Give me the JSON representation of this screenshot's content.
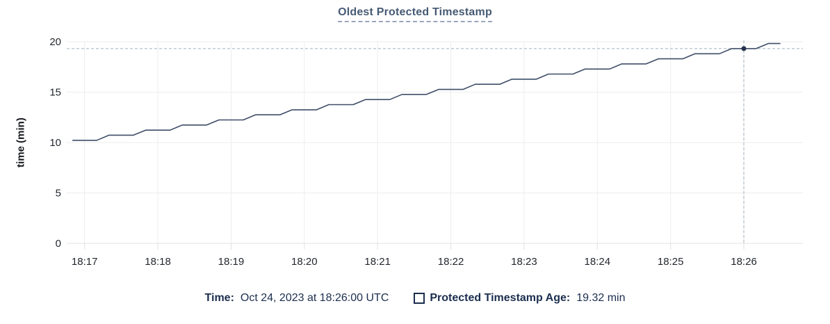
{
  "header": {
    "title": "Oldest Protected Timestamp"
  },
  "tooltip_bar": {
    "time_label": "Time:",
    "time_value": "Oct 24, 2023 at 18:26:00 UTC",
    "series_swatch": "hollow-square-swatch",
    "series_label": "Protected Timestamp Age:",
    "series_value": "19.32 min"
  },
  "colors": {
    "title": "#475a74",
    "title_underline": "#9aa6ba",
    "series_line": "#3f4d68",
    "hover_dot": "#26324e",
    "crosshair": "#9fb0bf",
    "gridline": "#ededed",
    "axis_line": "#e0e0e0",
    "tick_text": "#23272e",
    "legend_text": "#1b2e4e"
  },
  "chart_data": {
    "type": "line",
    "title": "Oldest Protected Timestamp",
    "xlabel": "",
    "ylabel": "time (min)",
    "ylim": [
      0,
      20
    ],
    "yticks": [
      0,
      5,
      10,
      15,
      20
    ],
    "xticks": [
      "18:17",
      "18:18",
      "18:19",
      "18:20",
      "18:21",
      "18:22",
      "18:23",
      "18:24",
      "18:25",
      "18:26"
    ],
    "grid": true,
    "legend_position": "bottom",
    "x_start": "18:16:50",
    "x_end": "18:26:30",
    "sample_interval_sec": 10,
    "hover": {
      "time": "18:26:00",
      "value": 19.32
    },
    "series": [
      {
        "name": "Protected Timestamp Age",
        "unit": "min",
        "color": "#3f4d68",
        "points": [
          [
            "18:16:50",
            10.22
          ],
          [
            "18:17:00",
            10.22
          ],
          [
            "18:17:10",
            10.22
          ],
          [
            "18:17:20",
            10.73
          ],
          [
            "18:17:30",
            10.73
          ],
          [
            "18:17:40",
            10.73
          ],
          [
            "18:17:50",
            11.23
          ],
          [
            "18:18:00",
            11.23
          ],
          [
            "18:18:10",
            11.23
          ],
          [
            "18:18:20",
            11.74
          ],
          [
            "18:18:30",
            11.74
          ],
          [
            "18:18:40",
            11.74
          ],
          [
            "18:18:50",
            12.24
          ],
          [
            "18:19:00",
            12.24
          ],
          [
            "18:19:10",
            12.24
          ],
          [
            "18:19:20",
            12.75
          ],
          [
            "18:19:30",
            12.75
          ],
          [
            "18:19:40",
            12.75
          ],
          [
            "18:19:50",
            13.25
          ],
          [
            "18:20:00",
            13.25
          ],
          [
            "18:20:10",
            13.25
          ],
          [
            "18:20:20",
            13.76
          ],
          [
            "18:20:30",
            13.76
          ],
          [
            "18:20:40",
            13.76
          ],
          [
            "18:20:50",
            14.26
          ],
          [
            "18:21:00",
            14.26
          ],
          [
            "18:21:10",
            14.26
          ],
          [
            "18:21:20",
            14.77
          ],
          [
            "18:21:30",
            14.77
          ],
          [
            "18:21:40",
            14.77
          ],
          [
            "18:21:50",
            15.27
          ],
          [
            "18:22:00",
            15.27
          ],
          [
            "18:22:10",
            15.27
          ],
          [
            "18:22:20",
            15.78
          ],
          [
            "18:22:30",
            15.78
          ],
          [
            "18:22:40",
            15.78
          ],
          [
            "18:22:50",
            16.28
          ],
          [
            "18:23:00",
            16.28
          ],
          [
            "18:23:10",
            16.28
          ],
          [
            "18:23:20",
            16.79
          ],
          [
            "18:23:30",
            16.79
          ],
          [
            "18:23:40",
            16.79
          ],
          [
            "18:23:50",
            17.29
          ],
          [
            "18:24:00",
            17.29
          ],
          [
            "18:24:10",
            17.29
          ],
          [
            "18:24:20",
            17.8
          ],
          [
            "18:24:30",
            17.8
          ],
          [
            "18:24:40",
            17.8
          ],
          [
            "18:24:50",
            18.3
          ],
          [
            "18:25:00",
            18.3
          ],
          [
            "18:25:10",
            18.3
          ],
          [
            "18:25:20",
            18.81
          ],
          [
            "18:25:30",
            18.81
          ],
          [
            "18:25:40",
            18.81
          ],
          [
            "18:25:50",
            19.32
          ],
          [
            "18:26:00",
            19.32
          ],
          [
            "18:26:10",
            19.32
          ],
          [
            "18:26:20",
            19.82
          ],
          [
            "18:26:30",
            19.82
          ]
        ]
      }
    ]
  }
}
